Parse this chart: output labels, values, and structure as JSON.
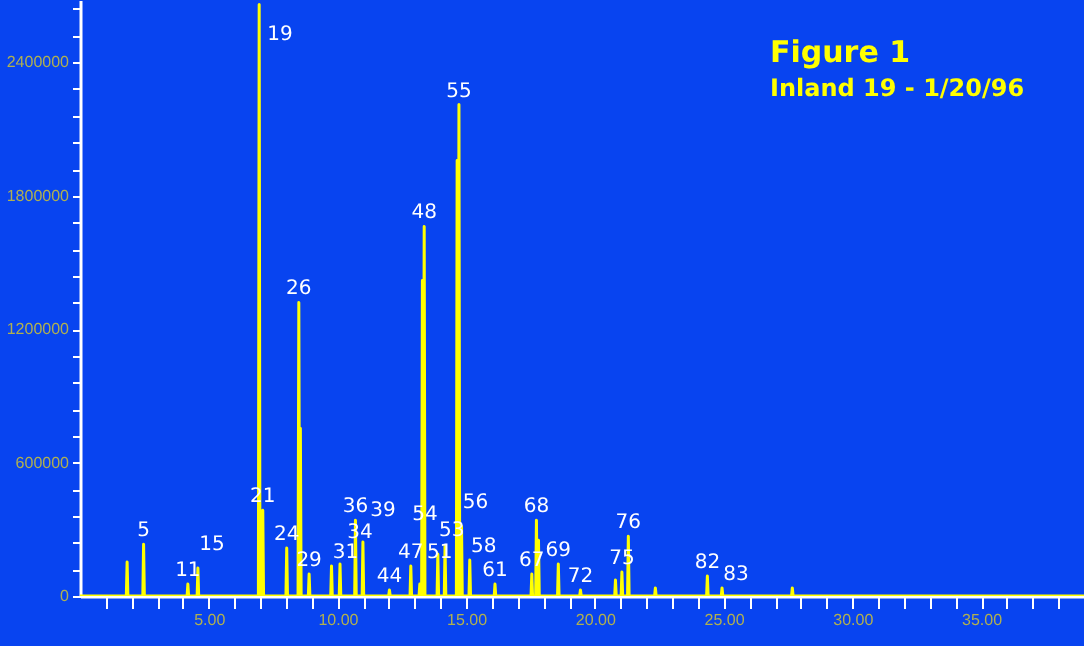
{
  "chart_data": {
    "type": "line",
    "title": "Figure 1",
    "subtitle": "Inland 19 - 1/20/96",
    "xlim": [
      0,
      39
    ],
    "ylim": [
      0,
      2680000
    ],
    "xticks": [
      {
        "value": 1,
        "label": null
      },
      {
        "value": 2,
        "label": null
      },
      {
        "value": 3,
        "label": null
      },
      {
        "value": 4,
        "label": null
      },
      {
        "value": 5,
        "label": "5.00"
      },
      {
        "value": 6,
        "label": null
      },
      {
        "value": 7,
        "label": null
      },
      {
        "value": 8,
        "label": null
      },
      {
        "value": 9,
        "label": null
      },
      {
        "value": 10,
        "label": "10.00"
      },
      {
        "value": 11,
        "label": null
      },
      {
        "value": 12,
        "label": null
      },
      {
        "value": 13,
        "label": null
      },
      {
        "value": 14,
        "label": null
      },
      {
        "value": 15,
        "label": "15.00"
      },
      {
        "value": 16,
        "label": null
      },
      {
        "value": 17,
        "label": null
      },
      {
        "value": 18,
        "label": null
      },
      {
        "value": 19,
        "label": null
      },
      {
        "value": 20,
        "label": "20.00"
      },
      {
        "value": 21,
        "label": null
      },
      {
        "value": 22,
        "label": null
      },
      {
        "value": 23,
        "label": null
      },
      {
        "value": 24,
        "label": null
      },
      {
        "value": 25,
        "label": "25.00"
      },
      {
        "value": 26,
        "label": null
      },
      {
        "value": 27,
        "label": null
      },
      {
        "value": 28,
        "label": null
      },
      {
        "value": 29,
        "label": null
      },
      {
        "value": 30,
        "label": "30.00"
      },
      {
        "value": 31,
        "label": null
      },
      {
        "value": 32,
        "label": null
      },
      {
        "value": 33,
        "label": null
      },
      {
        "value": 34,
        "label": null
      },
      {
        "value": 35,
        "label": "35.00"
      },
      {
        "value": 36,
        "label": null
      },
      {
        "value": 37,
        "label": null
      },
      {
        "value": 38,
        "label": null
      }
    ],
    "yticks": [
      0,
      {
        "value": 120000,
        "label": null
      },
      {
        "value": 240000,
        "label": null
      },
      {
        "value": 360000,
        "label": null
      },
      {
        "value": 480000,
        "label": null
      },
      600000,
      {
        "value": 720000,
        "label": null
      },
      {
        "value": 840000,
        "label": null
      },
      {
        "value": 960000,
        "label": null
      },
      {
        "value": 1080000,
        "label": null
      },
      1200000,
      {
        "value": 1320000,
        "label": null
      },
      {
        "value": 1440000,
        "label": null
      },
      {
        "value": 1560000,
        "label": null
      },
      {
        "value": 1680000,
        "label": null
      },
      1800000,
      {
        "value": 1920000,
        "label": null
      },
      {
        "value": 2040000,
        "label": null
      },
      {
        "value": 2160000,
        "label": null
      },
      {
        "value": 2280000,
        "label": null
      },
      2400000,
      {
        "value": 2520000,
        "label": null
      },
      {
        "value": 2640000,
        "label": null
      }
    ],
    "grid": false,
    "marker": "none",
    "line_style": "solid",
    "series": [
      {
        "color": "#ffff00",
        "x": [
          0,
          1.8,
          1.83,
          1.86,
          2.44,
          2.47,
          2.5,
          4.16,
          4.19,
          4.22,
          4.55,
          4.58,
          4.61,
          6.93,
          6.96,
          6.99,
          7.07,
          7.1,
          7.13,
          8.0,
          8.03,
          8.06,
          8.47,
          8.5,
          8.53,
          8.53,
          8.56,
          8.59,
          8.87,
          8.9,
          8.93,
          9.74,
          9.77,
          9.8,
          10.07,
          10.1,
          10.13,
          10.67,
          10.7,
          10.73,
          10.96,
          10.99,
          11.02,
          11.99,
          12.02,
          12.05,
          12.82,
          12.85,
          12.88,
          13.17,
          13.2,
          13.23,
          13.27,
          13.3,
          13.33,
          13.34,
          13.37,
          13.4,
          13.87,
          13.9,
          13.93,
          14.15,
          14.18,
          14.21,
          14.62,
          14.65,
          14.68,
          14.69,
          14.72,
          14.75,
          14.79,
          14.82,
          14.85,
          15.11,
          15.14,
          15.17,
          16.09,
          16.12,
          16.15,
          17.52,
          17.55,
          17.58,
          17.7,
          17.73,
          17.76,
          17.78,
          17.81,
          17.84,
          18.55,
          18.58,
          18.61,
          19.41,
          19.44,
          19.47,
          20.77,
          20.8,
          20.83,
          21.02,
          21.05,
          21.08,
          21.27,
          21.3,
          21.33,
          22.32,
          22.35,
          22.38,
          24.34,
          24.37,
          24.4,
          24.91,
          24.94,
          24.97,
          27.64,
          27.67,
          27.7,
          39
        ],
        "values": [
          0,
          0,
          153000,
          0,
          0,
          233000,
          0,
          0,
          54000,
          0,
          0,
          126000,
          0,
          0,
          2660000,
          0,
          0,
          386000,
          0,
          0,
          216000,
          0,
          0,
          1320000,
          0,
          0,
          754000,
          0,
          0,
          99000,
          0,
          0,
          135000,
          0,
          0,
          144000,
          0,
          0,
          341000,
          0,
          0,
          243000,
          0,
          0,
          27000,
          0,
          0,
          135000,
          0,
          0,
          54000,
          0,
          0,
          1419000,
          0,
          0,
          1662000,
          0,
          0,
          189000,
          0,
          0,
          225000,
          0,
          0,
          1958000,
          0,
          0,
          2210000,
          0,
          0,
          314000,
          0,
          0,
          162000,
          0,
          0,
          54000,
          0,
          0,
          99000,
          0,
          0,
          341000,
          0,
          0,
          251000,
          0,
          0,
          144000,
          0,
          0,
          27000,
          0,
          0,
          72000,
          0,
          0,
          108000,
          0,
          0,
          269000,
          0,
          0,
          36000,
          0,
          0,
          90000,
          0,
          0,
          36000,
          0,
          0,
          36000,
          0,
          0
        ]
      }
    ],
    "annotations": [
      {
        "text": "5",
        "x": 2.47,
        "y": 233000
      },
      {
        "text": "11",
        "x": 4.19,
        "y": 54000
      },
      {
        "text": "15",
        "x": 4.58,
        "y": 126000
      },
      {
        "text": "19",
        "x": 6.96,
        "y": 2660000
      },
      {
        "text": "21",
        "x": 7.1,
        "y": 386000
      },
      {
        "text": "24",
        "x": 8.03,
        "y": 216000
      },
      {
        "text": "26",
        "x": 8.5,
        "y": 1320000
      },
      {
        "text": "29",
        "x": 8.9,
        "y": 99000
      },
      {
        "text": "31",
        "x": 9.77,
        "y": 135000
      },
      {
        "text": "34",
        "x": 10.1,
        "y": 144000
      },
      {
        "text": "36",
        "x": 10.7,
        "y": 341000
      },
      {
        "text": "39",
        "x": 10.99,
        "y": 243000
      },
      {
        "text": "44",
        "x": 12.02,
        "y": 27000
      },
      {
        "text": "47",
        "x": 12.85,
        "y": 135000
      },
      {
        "text": "48",
        "x": 13.37,
        "y": 1662000
      },
      {
        "text": "51",
        "x": 13.2,
        "y": 54000
      },
      {
        "text": "53",
        "x": 13.9,
        "y": 189000
      },
      {
        "text": "54",
        "x": 14.18,
        "y": 225000
      },
      {
        "text": "55",
        "x": 14.72,
        "y": 2210000
      },
      {
        "text": "56",
        "x": 14.82,
        "y": 314000
      },
      {
        "text": "58",
        "x": 15.14,
        "y": 162000
      },
      {
        "text": "61",
        "x": 16.12,
        "y": 54000
      },
      {
        "text": "67",
        "x": 17.55,
        "y": 99000
      },
      {
        "text": "68",
        "x": 17.73,
        "y": 341000
      },
      {
        "text": "69",
        "x": 18.58,
        "y": 144000
      },
      {
        "text": "72",
        "x": 19.44,
        "y": 27000
      },
      {
        "text": "75",
        "x": 21.05,
        "y": 108000
      },
      {
        "text": "76",
        "x": 21.3,
        "y": 269000
      },
      {
        "text": "82",
        "x": 24.37,
        "y": 90000
      },
      {
        "text": "83",
        "x": 24.94,
        "y": 36000
      }
    ]
  }
}
